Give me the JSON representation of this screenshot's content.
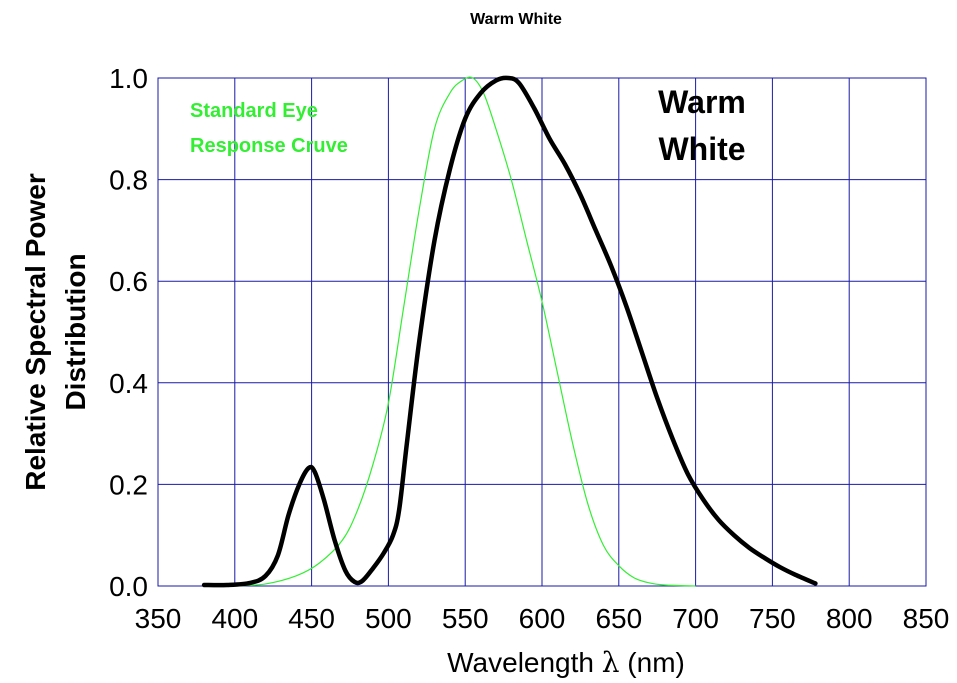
{
  "chart_data": {
    "type": "line",
    "title": "Warm White",
    "xlabel": "Wavelength",
    "xlabel_symbol": "λ",
    "xlabel_unit": "(nm)",
    "ylabel_line1": "Relative Spectral Power",
    "ylabel_line2": "Distribution",
    "xlim": [
      350,
      850
    ],
    "ylim": [
      0.0,
      1.0
    ],
    "xticks": [
      350,
      400,
      450,
      500,
      550,
      600,
      650,
      700,
      750,
      800,
      850
    ],
    "yticks": [
      "0.0",
      "0.2",
      "0.4",
      "0.6",
      "0.8",
      "1.0"
    ],
    "grid": true,
    "annotations": {
      "eye_line1": "Standard Eye",
      "eye_line2": "Response Cruve",
      "ww_line1": "Warm",
      "ww_line2": "White"
    },
    "series": [
      {
        "key": "warm_white",
        "color": "#000000",
        "points": [
          [
            380,
            0.002
          ],
          [
            395,
            0.002
          ],
          [
            410,
            0.006
          ],
          [
            420,
            0.02
          ],
          [
            428,
            0.06
          ],
          [
            435,
            0.14
          ],
          [
            442,
            0.2
          ],
          [
            448,
            0.232
          ],
          [
            452,
            0.225
          ],
          [
            458,
            0.17
          ],
          [
            465,
            0.09
          ],
          [
            472,
            0.03
          ],
          [
            478,
            0.008
          ],
          [
            483,
            0.01
          ],
          [
            490,
            0.035
          ],
          [
            497,
            0.065
          ],
          [
            503,
            0.1
          ],
          [
            507,
            0.15
          ],
          [
            512,
            0.28
          ],
          [
            520,
            0.48
          ],
          [
            530,
            0.68
          ],
          [
            540,
            0.82
          ],
          [
            550,
            0.92
          ],
          [
            560,
            0.97
          ],
          [
            570,
            0.995
          ],
          [
            578,
            1.0
          ],
          [
            585,
            0.99
          ],
          [
            595,
            0.94
          ],
          [
            605,
            0.88
          ],
          [
            615,
            0.83
          ],
          [
            625,
            0.77
          ],
          [
            635,
            0.7
          ],
          [
            645,
            0.63
          ],
          [
            655,
            0.55
          ],
          [
            665,
            0.46
          ],
          [
            675,
            0.37
          ],
          [
            685,
            0.29
          ],
          [
            695,
            0.22
          ],
          [
            705,
            0.17
          ],
          [
            715,
            0.13
          ],
          [
            725,
            0.1
          ],
          [
            735,
            0.075
          ],
          [
            745,
            0.055
          ],
          [
            755,
            0.037
          ],
          [
            765,
            0.022
          ],
          [
            778,
            0.005
          ]
        ]
      },
      {
        "key": "eye_response",
        "color": "#33ee33",
        "points": [
          [
            400,
            0.0
          ],
          [
            420,
            0.004
          ],
          [
            440,
            0.02
          ],
          [
            455,
            0.045
          ],
          [
            470,
            0.09
          ],
          [
            480,
            0.15
          ],
          [
            490,
            0.24
          ],
          [
            500,
            0.36
          ],
          [
            510,
            0.55
          ],
          [
            520,
            0.74
          ],
          [
            530,
            0.9
          ],
          [
            540,
            0.97
          ],
          [
            548,
            0.995
          ],
          [
            555,
            1.0
          ],
          [
            562,
            0.97
          ],
          [
            570,
            0.9
          ],
          [
            580,
            0.8
          ],
          [
            590,
            0.68
          ],
          [
            600,
            0.56
          ],
          [
            610,
            0.42
          ],
          [
            620,
            0.28
          ],
          [
            630,
            0.16
          ],
          [
            640,
            0.08
          ],
          [
            650,
            0.04
          ],
          [
            660,
            0.016
          ],
          [
            670,
            0.006
          ],
          [
            680,
            0.002
          ],
          [
            700,
            0.0
          ]
        ]
      }
    ]
  }
}
